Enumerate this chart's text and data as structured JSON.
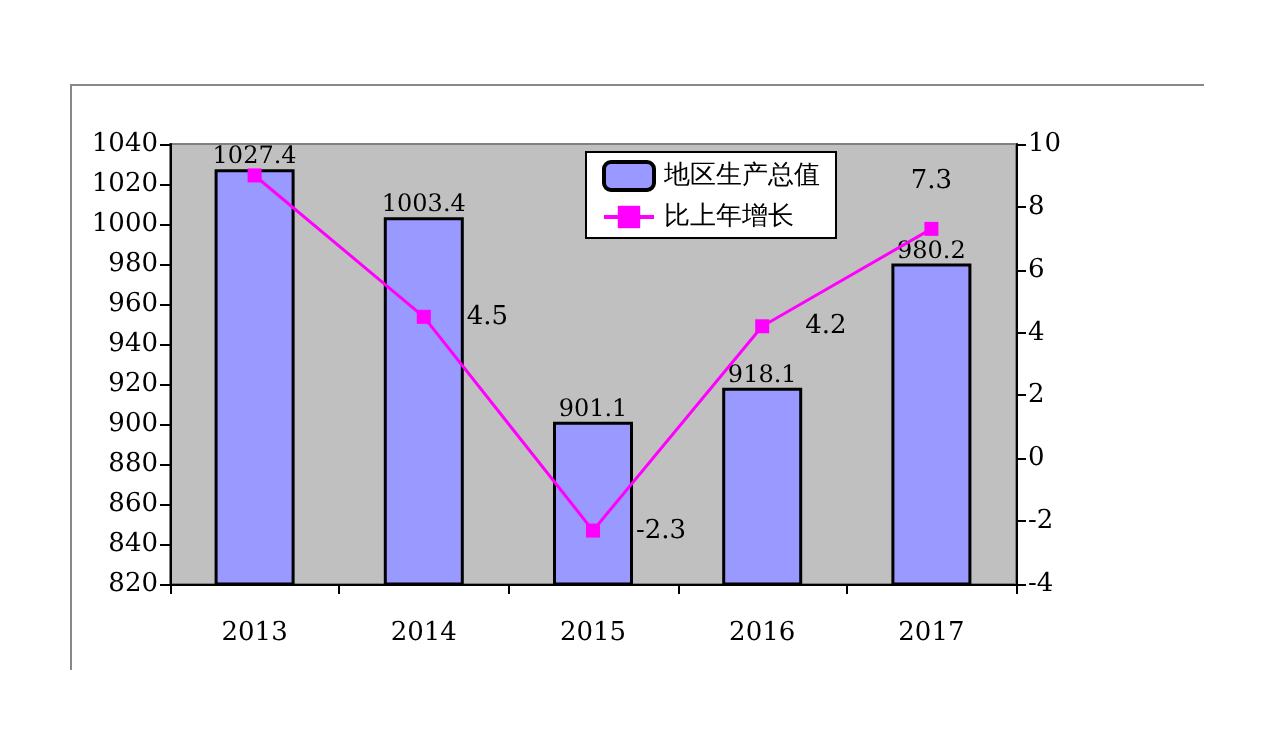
{
  "chart_data": {
    "type": "bar",
    "categories": [
      "2013",
      "2014",
      "2015",
      "2016",
      "2017"
    ],
    "series": [
      {
        "name": "地区生产总值",
        "color": "#9999ff",
        "values": [
          1027.4,
          1003.4,
          901.1,
          918.1,
          980.2
        ],
        "value_labels": [
          "1027.4",
          "1003.4",
          "901.1",
          "918.1",
          "980.2"
        ]
      },
      {
        "name": "比上年增长",
        "type": "line",
        "axis": "y2",
        "color": "#ff00ff",
        "values": [
          9,
          4.5,
          -2.3,
          4.2,
          7.3
        ],
        "value_labels": [
          null,
          "4.5",
          "-2.3",
          "4.2",
          "7.3"
        ]
      }
    ],
    "ylim": [
      820,
      1040
    ],
    "yticks": [
      820,
      840,
      860,
      880,
      900,
      920,
      940,
      960,
      980,
      1000,
      1020,
      1040
    ],
    "y2lim": [
      -4,
      10
    ],
    "y2ticks": [
      -4,
      -2,
      0,
      2,
      4,
      6,
      8,
      10
    ],
    "legend": "top right",
    "marker": "square",
    "grid": false
  }
}
